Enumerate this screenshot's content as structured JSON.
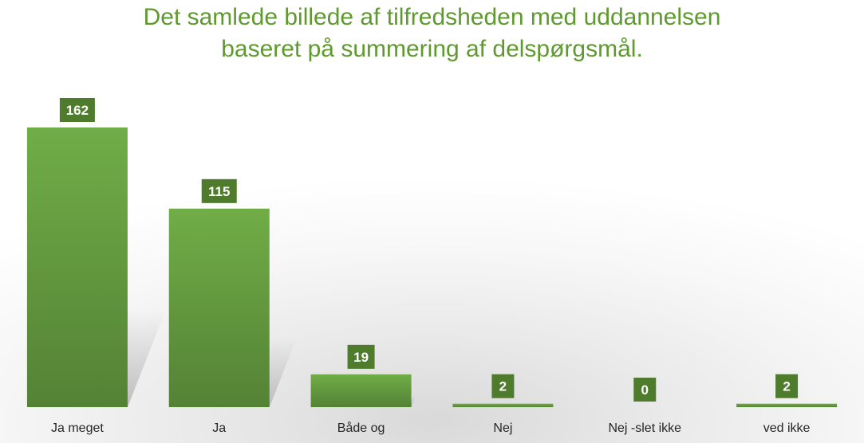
{
  "chart_data": {
    "type": "bar",
    "title_lines": [
      "Det samlede billede af tilfredsheden med uddannelsen",
      "baseret på summering af delspørgsmål."
    ],
    "categories": [
      "Ja meget",
      "Ja",
      "Både og",
      "Nej",
      "Nej -slet ikke",
      "ved ikke"
    ],
    "values": [
      162,
      115,
      19,
      2,
      0,
      2
    ],
    "xlabel": "",
    "ylabel": "",
    "ylim": [
      0,
      162
    ],
    "grid": false,
    "legend": "none",
    "data_labels": true,
    "colors": {
      "bar_top": "#70ad47",
      "bar_bottom": "#548235",
      "label_bg": "#4e7b2c",
      "label_text": "#ffffff",
      "title": "#5f9a2e",
      "tick_text": "#262626"
    }
  }
}
